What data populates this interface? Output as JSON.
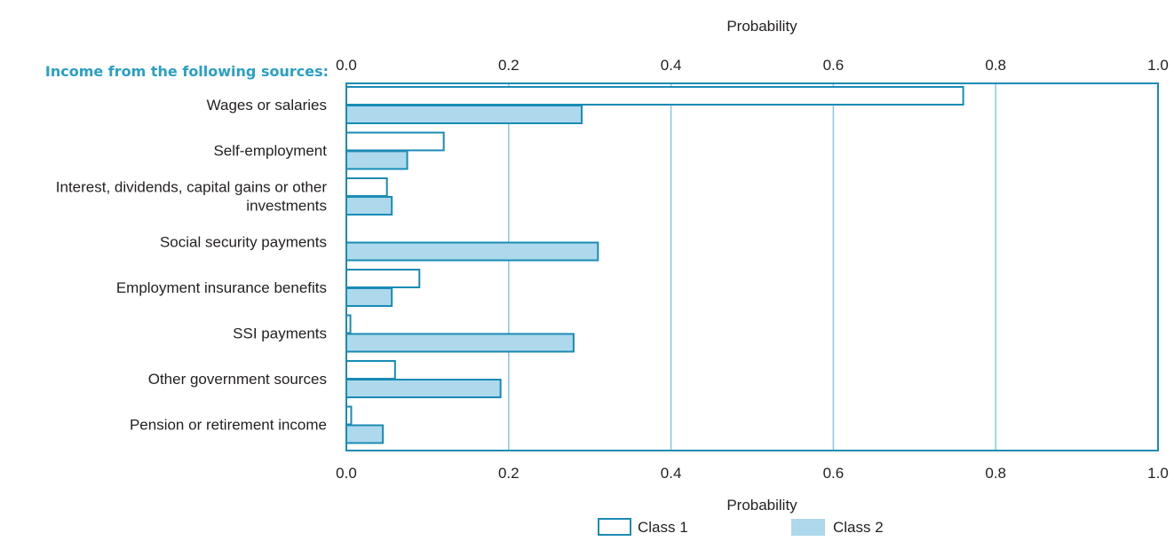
{
  "chart_data": {
    "type": "bar",
    "orientation": "horizontal",
    "category_header": "Income from the following sources:",
    "categories": [
      "Wages or salaries",
      "Self-employment",
      "Interest, dividends, capital gains or other investments",
      "Social security payments",
      "Employment insurance benefits",
      "SSI payments",
      "Other government sources",
      "Pension or retirement income"
    ],
    "category_lines": [
      [
        "Wages or salaries"
      ],
      [
        "Self-employment"
      ],
      [
        "Interest, dividends, capital gains or other",
        "investments"
      ],
      [
        "Social security payments"
      ],
      [
        "Employment insurance benefits"
      ],
      [
        "SSI payments"
      ],
      [
        "Other government sources"
      ],
      [
        "Pension or retirement income"
      ]
    ],
    "series": [
      {
        "name": "Class 1",
        "values": [
          0.76,
          0.12,
          0.05,
          0.0,
          0.09,
          0.005,
          0.06,
          0.006
        ]
      },
      {
        "name": "Class 2",
        "values": [
          0.29,
          0.075,
          0.056,
          0.31,
          0.056,
          0.28,
          0.19,
          0.045
        ]
      }
    ],
    "xlabel_top": "Probability",
    "xlabel_bottom": "Probability",
    "xlim": [
      0,
      1
    ],
    "ticks": [
      0.0,
      0.2,
      0.4,
      0.6,
      0.8,
      1.0
    ],
    "tick_labels": [
      "0.0",
      "0.2",
      "0.4",
      "0.6",
      "0.8",
      "1.0"
    ],
    "grid": true,
    "legend_position": "bottom",
    "colors": {
      "accent": "#1a8bb5",
      "header": "#2a9fc6",
      "class1_fill": "#ffffff",
      "class2_fill": "#aed8ec",
      "grid": "#86c7e0",
      "text": "#231f20"
    }
  }
}
